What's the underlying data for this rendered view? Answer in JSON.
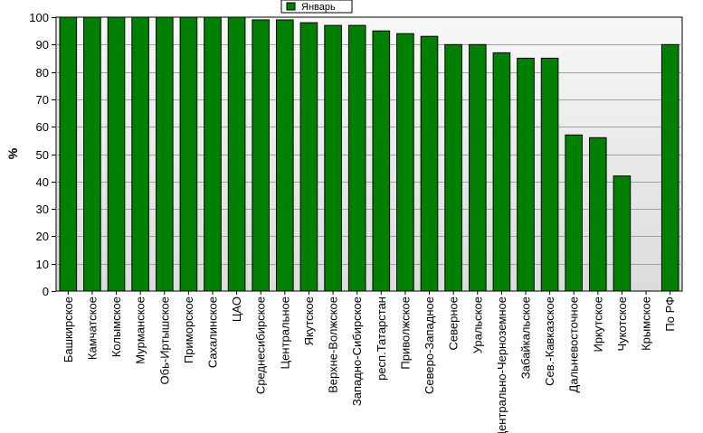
{
  "chart_data": {
    "type": "bar",
    "ylabel": "%",
    "ylim": [
      0,
      100
    ],
    "yticks": [
      0,
      10,
      20,
      30,
      40,
      50,
      60,
      70,
      80,
      90,
      100
    ],
    "grid": true,
    "legend_position": "top-center",
    "colors": {
      "bar": "#008000",
      "bar_edge": "#000000",
      "plot_bg_top": "#f7f7f7",
      "plot_bg_bottom": "#dcdcdc",
      "grid": "#a0a0a0"
    },
    "categories": [
      "Башкирское",
      "Камчатское",
      "Колымское",
      "Мурманское",
      "Обь-Иртышское",
      "Приморское",
      "Сахалинское",
      "ЦАО",
      "Среднесибирское",
      "Центральное",
      "Якутское",
      "Верхне-Волжское",
      "Западно-Сибирское",
      "респ.Татарстан",
      "Приволжское",
      "Северо-Западное",
      "Северное",
      "Уральское",
      "Центрально-Черноземное",
      "Забайкальское",
      "Сев.-Кавказское",
      "Дальневосточное",
      "Иркутское",
      "Чукотское",
      "Крымское",
      "По РФ"
    ],
    "series": [
      {
        "name": "Январь",
        "values": [
          100,
          100,
          100,
          100,
          100,
          100,
          100,
          100,
          99,
          99,
          98,
          97,
          97,
          95,
          94,
          93,
          90,
          90,
          87,
          85,
          85,
          57,
          56,
          42,
          0,
          90
        ]
      }
    ]
  }
}
